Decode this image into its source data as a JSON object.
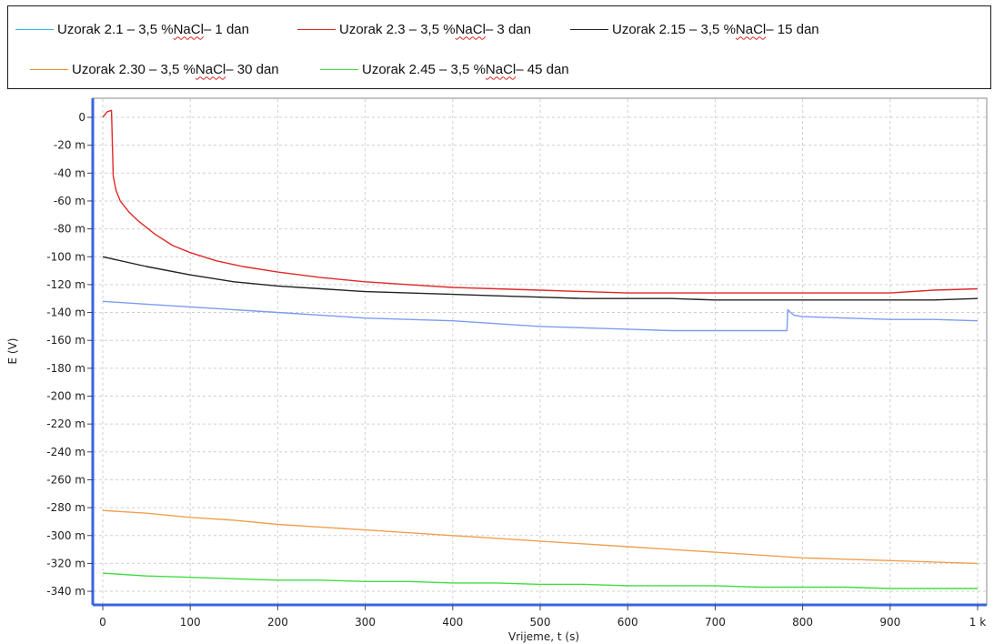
{
  "chart_data": {
    "type": "line",
    "title": "",
    "xlabel": "Vrijeme, t (s)",
    "ylabel": "E (V)",
    "xlim": [
      0,
      1000
    ],
    "ylim": [
      -345,
      10
    ],
    "grid": true,
    "legend_placement": "top",
    "x_ticks": [
      0,
      100,
      200,
      300,
      400,
      500,
      600,
      700,
      800,
      900,
      1000
    ],
    "x_tick_labels": [
      "0",
      "100",
      "200",
      "300",
      "400",
      "500",
      "600",
      "700",
      "800",
      "900",
      "1 k"
    ],
    "y_ticks": [
      0,
      -20,
      -40,
      -60,
      -80,
      -100,
      -120,
      -140,
      -160,
      -180,
      -200,
      -220,
      -240,
      -260,
      -280,
      -300,
      -320,
      -340
    ],
    "y_tick_labels": [
      "0",
      "-20 m",
      "-40 m",
      "-60 m",
      "-80 m",
      "-100 m",
      "-120 m",
      "-140 m",
      "-160 m",
      "-180 m",
      "-200 m",
      "-220 m",
      "-240 m",
      "-260 m",
      "-280 m",
      "-300 m",
      "-320 m",
      "-340 m"
    ],
    "series": [
      {
        "legend_parts": [
          "Uzorak 2.1 – 3,5 % ",
          "NaCl",
          " – 1 dan"
        ],
        "color": "#7b9cf0",
        "legend_color": "#30b4e0",
        "x": [
          0,
          50,
          100,
          150,
          200,
          250,
          300,
          350,
          400,
          450,
          500,
          550,
          600,
          650,
          700,
          750,
          782,
          783,
          790,
          800,
          850,
          900,
          950,
          1000
        ],
        "y": [
          -132,
          -134,
          -136,
          -138,
          -140,
          -142,
          -144,
          -145,
          -146,
          -148,
          -150,
          -151,
          -152,
          -153,
          -153,
          -153,
          -153,
          -138,
          -142,
          -143,
          -144,
          -145,
          -145,
          -146
        ]
      },
      {
        "legend_parts": [
          "Uzorak 2.3 – 3,5 % ",
          "NaCl",
          " – 3 dan"
        ],
        "color": "#e02828",
        "legend_color": "#e02828",
        "x": [
          0,
          5,
          10,
          11,
          12,
          15,
          20,
          30,
          40,
          50,
          60,
          80,
          100,
          130,
          160,
          200,
          250,
          300,
          350,
          400,
          450,
          500,
          550,
          600,
          700,
          800,
          900,
          950,
          1000
        ],
        "y": [
          0,
          4,
          5,
          -20,
          -42,
          -52,
          -60,
          -68,
          -74,
          -79,
          -84,
          -92,
          -97,
          -103,
          -107,
          -111,
          -115,
          -118,
          -120,
          -122,
          -123,
          -124,
          -125,
          -126,
          -126,
          -126,
          -126,
          -124,
          -123
        ]
      },
      {
        "legend_parts": [
          "Uzorak 2.15 – 3,5 % ",
          "NaCl",
          " – 15 dan"
        ],
        "color": "#222222",
        "legend_color": "#222222",
        "x": [
          0,
          50,
          100,
          150,
          200,
          250,
          300,
          350,
          400,
          450,
          500,
          550,
          600,
          650,
          700,
          750,
          800,
          850,
          900,
          950,
          1000
        ],
        "y": [
          -100,
          -107,
          -113,
          -118,
          -121,
          -123,
          -125,
          -126,
          -127,
          -128,
          -129,
          -130,
          -130,
          -130,
          -131,
          -131,
          -131,
          -131,
          -131,
          -131,
          -130
        ]
      },
      {
        "legend_parts": [
          "Uzorak 2.30 – 3,5 % ",
          "NaCl",
          " – 30 dan"
        ],
        "color": "#f0a050",
        "legend_color": "#f09030",
        "x": [
          0,
          50,
          100,
          150,
          200,
          250,
          300,
          350,
          400,
          450,
          500,
          550,
          600,
          650,
          700,
          750,
          800,
          850,
          900,
          950,
          1000
        ],
        "y": [
          -282,
          -284,
          -287,
          -289,
          -292,
          -294,
          -296,
          -298,
          -300,
          -302,
          -304,
          -306,
          -308,
          -310,
          -312,
          -314,
          -316,
          -317,
          -318,
          -319,
          -320
        ]
      },
      {
        "legend_parts": [
          "Uzorak 2.45 – 3,5 % ",
          "NaCl",
          " – 45 dan"
        ],
        "color": "#40dd40",
        "legend_color": "#40dd40",
        "x": [
          0,
          50,
          100,
          150,
          200,
          250,
          300,
          350,
          400,
          450,
          500,
          550,
          600,
          650,
          700,
          750,
          800,
          850,
          900,
          950,
          1000
        ],
        "y": [
          -327,
          -329,
          -330,
          -331,
          -332,
          -332,
          -333,
          -333,
          -334,
          -334,
          -335,
          -335,
          -336,
          -336,
          -336,
          -337,
          -337,
          -337,
          -338,
          -338,
          -338
        ]
      }
    ]
  }
}
